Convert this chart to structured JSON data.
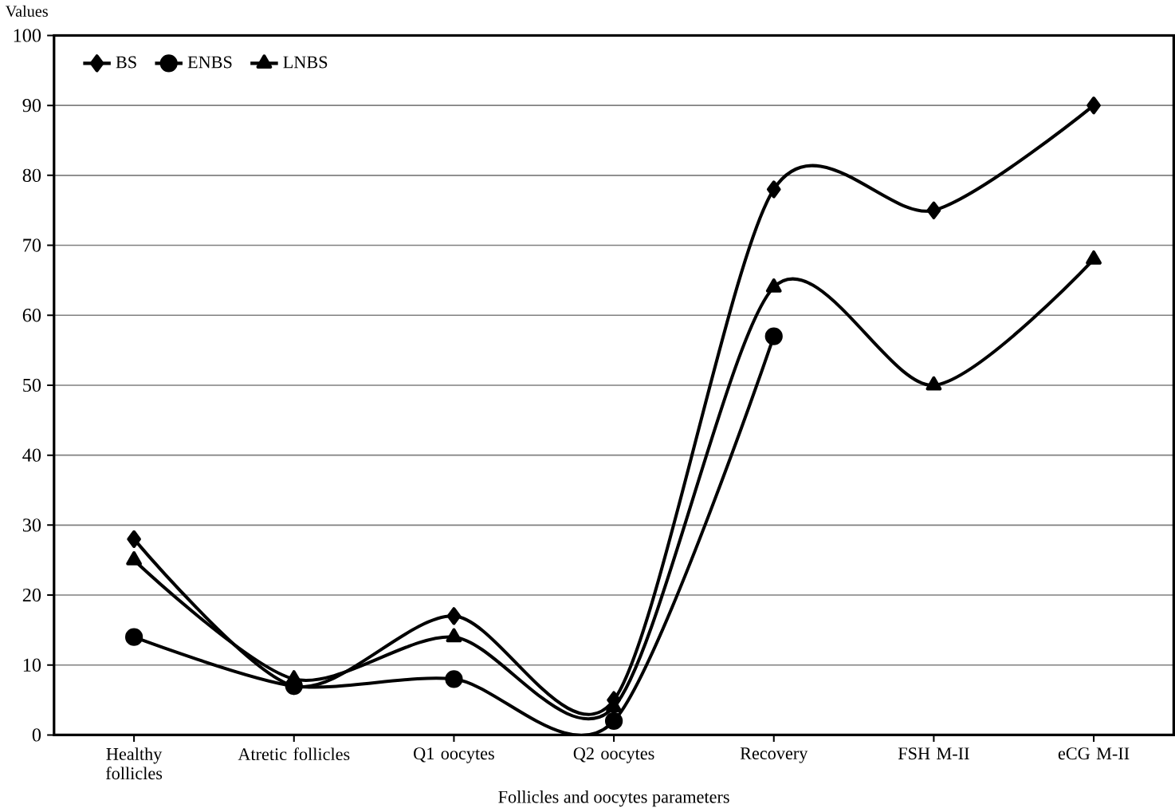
{
  "chart_data": {
    "type": "line",
    "xlabel": "Follicles and oocytes parameters",
    "ylabel": "Values",
    "categories": [
      "Healthy follicles",
      "Atretic follicles",
      "Q1 oocytes",
      "Q2 oocytes",
      "Recovery",
      "FSH M-II",
      "eCG M-II"
    ],
    "series": [
      {
        "name": "BS",
        "color": "#000000",
        "marker": "diamond",
        "values": [
          28,
          7,
          17,
          5,
          78,
          75,
          90
        ]
      },
      {
        "name": "ENBS",
        "color": "#000000",
        "marker": "circle",
        "values": [
          14,
          7,
          8,
          2,
          57,
          null,
          null
        ]
      },
      {
        "name": "LNBS",
        "color": "#000000",
        "marker": "triangle",
        "values": [
          25,
          8,
          14,
          4,
          64,
          50,
          68
        ]
      }
    ],
    "ylim": [
      0,
      100
    ],
    "yticks": [
      0,
      10,
      20,
      30,
      40,
      50,
      60,
      70,
      80,
      90,
      100
    ],
    "grid": "y",
    "legend": "top left",
    "line_style": "solid"
  }
}
